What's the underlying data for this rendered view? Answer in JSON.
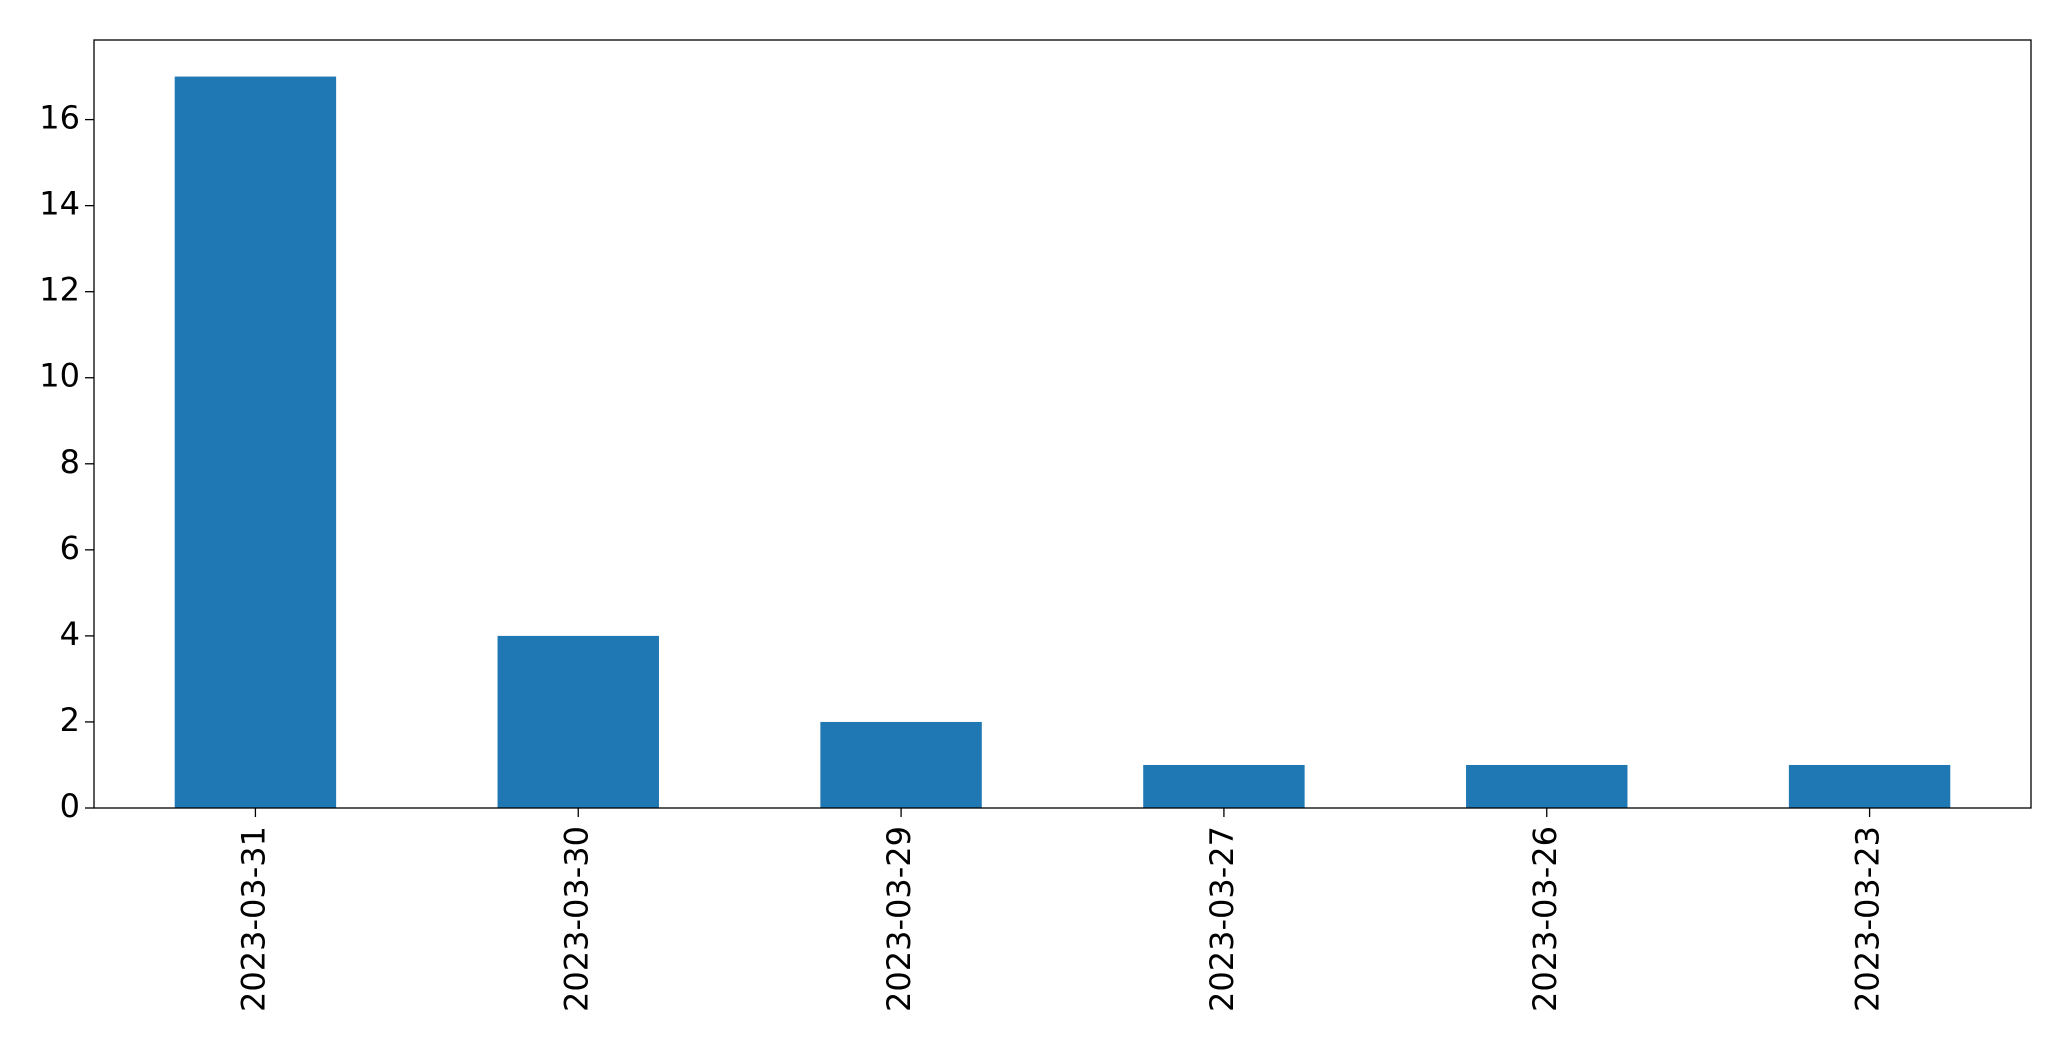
{
  "chart_data": {
    "type": "bar",
    "categories": [
      "2023-03-31",
      "2023-03-30",
      "2023-03-29",
      "2023-03-27",
      "2023-03-26",
      "2023-03-23"
    ],
    "values": [
      17,
      4,
      2,
      1,
      1,
      1
    ],
    "color": "#1f77b4",
    "ylim": [
      0,
      17.85
    ],
    "yticks": [
      0,
      2,
      4,
      6,
      8,
      10,
      12,
      14,
      16
    ],
    "grid": false
  }
}
